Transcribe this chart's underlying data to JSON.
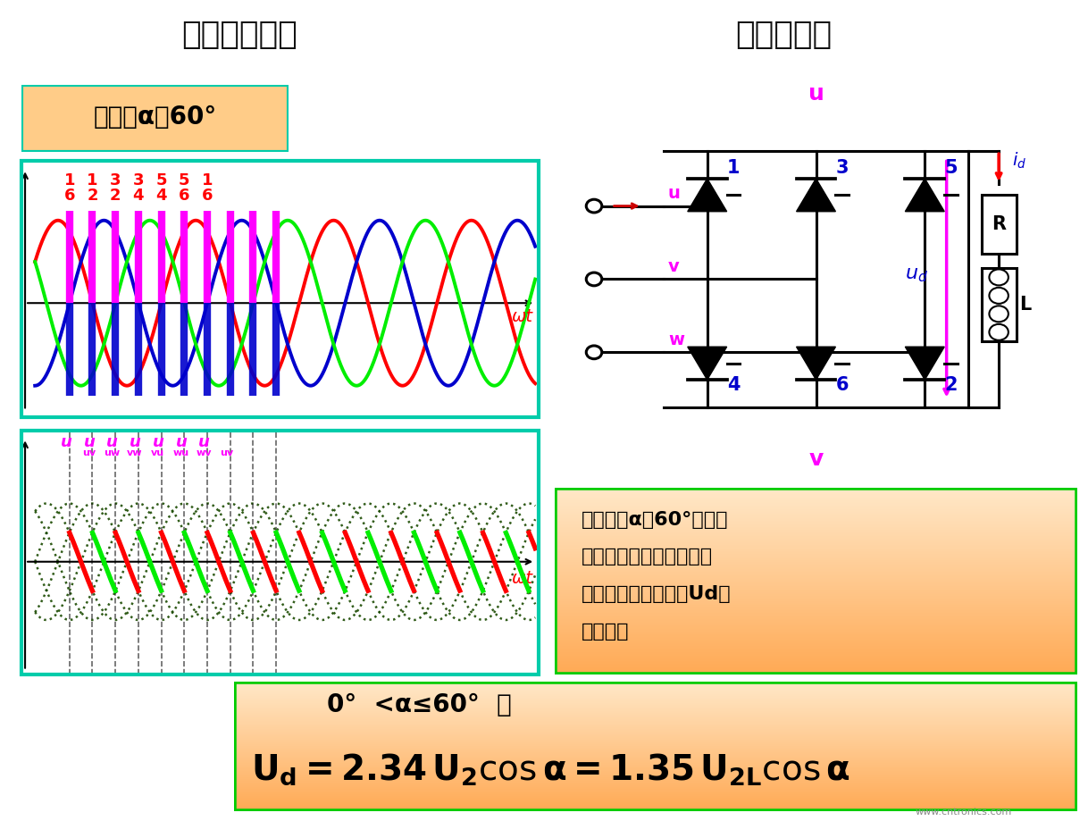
{
  "title_left": "三相桥式全控",
  "title_right": "电感性负载",
  "header_bg": "#9999cc",
  "control_angle_text": "控制角α＝60°",
  "upper_labels_top": [
    "1",
    "1",
    "3",
    "3",
    "5",
    "5",
    "1"
  ],
  "upper_labels_bot": [
    "6",
    "2",
    "2",
    "4",
    "4",
    "6",
    "6"
  ],
  "lv_subs": [
    "uv",
    "uw",
    "vw",
    "vu",
    "wu",
    "wv",
    "uv"
  ],
  "text_lines": [
    "电阻负载α＜60°时波形",
    "连续，感性负载与电阻性",
    "负载电压波形一样，Ud计",
    "算式相同"
  ],
  "colors": {
    "red": "#ff0000",
    "bright_green": "#00ee00",
    "blue": "#0000cc",
    "magenta": "#ff00ff",
    "dark_green_dot": "#1a4a00",
    "teal_border": "#00ccaa",
    "orange_bg_light": "#ffe0c0",
    "orange_bg_dark": "#ffb070",
    "header": "#9999cc",
    "black": "#000000",
    "deep_blue": "#0000cc"
  }
}
